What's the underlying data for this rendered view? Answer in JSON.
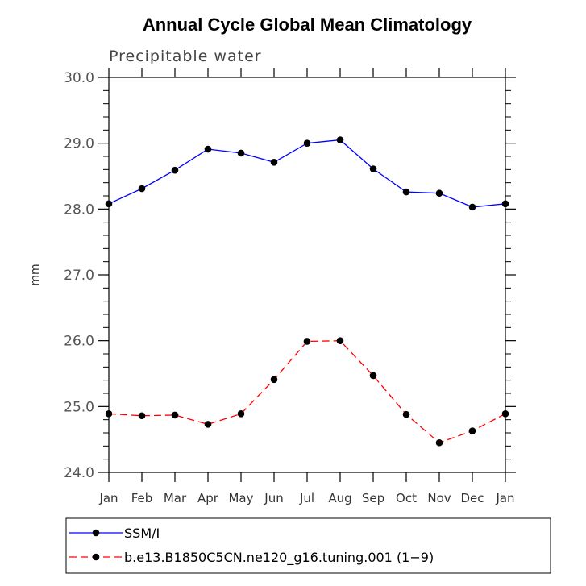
{
  "chart_data": {
    "type": "line",
    "title": "Annual Cycle Global Mean Climatology",
    "subtitle": "Precipitable water",
    "xlabel": "",
    "ylabel": "mm",
    "ylim": [
      24.0,
      30.0
    ],
    "categories": [
      "Jan",
      "Feb",
      "Mar",
      "Apr",
      "May",
      "Jun",
      "Jul",
      "Aug",
      "Sep",
      "Oct",
      "Nov",
      "Dec",
      "Jan"
    ],
    "yticks": [
      "24.0",
      "25.0",
      "26.0",
      "27.0",
      "28.0",
      "29.0",
      "30.0"
    ],
    "series": [
      {
        "name": "SSM/I",
        "color": "#0000ff",
        "dash": "solid",
        "values": [
          28.08,
          28.31,
          28.59,
          28.91,
          28.85,
          28.71,
          29.0,
          29.05,
          28.61,
          28.26,
          28.24,
          28.03,
          28.08
        ]
      },
      {
        "name": "b.e13.B1850C5CN.ne120_g16.tuning.001 (1−9)",
        "color": "#ff0000",
        "dash": "dashed",
        "values": [
          24.89,
          24.86,
          24.87,
          24.73,
          24.89,
          25.41,
          25.99,
          26.0,
          25.47,
          24.88,
          24.45,
          24.63,
          24.89
        ]
      }
    ],
    "legend_position": "bottom",
    "grid": false
  }
}
